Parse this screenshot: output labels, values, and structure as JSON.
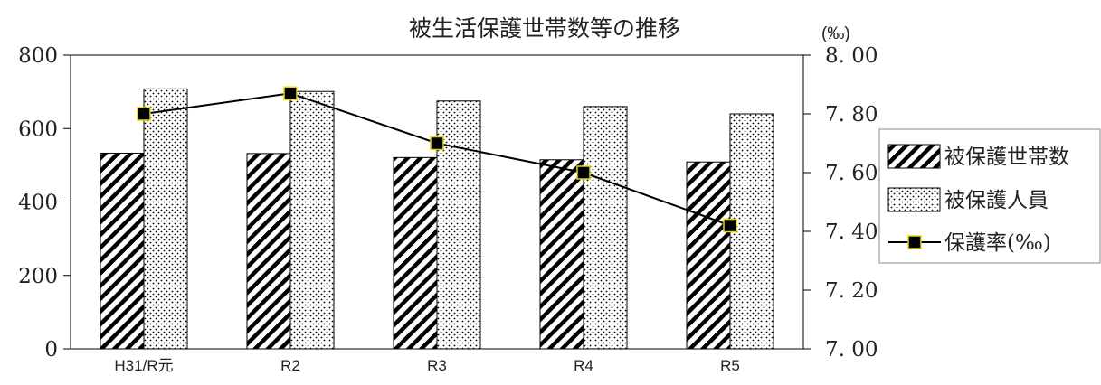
{
  "chart_data": {
    "type": "bar",
    "title": "被生活保護世帯数等の推移",
    "categories": [
      "H31/R元",
      "R2",
      "R3",
      "R4",
      "R5"
    ],
    "series": [
      {
        "name": "被保護世帯数",
        "type": "bar",
        "axis": "left",
        "pattern": "diagonal-hatch",
        "values": [
          533,
          532,
          521,
          515,
          509
        ]
      },
      {
        "name": "被保護人員",
        "type": "bar",
        "axis": "left",
        "pattern": "dots",
        "values": [
          708,
          701,
          675,
          660,
          640
        ]
      },
      {
        "name": "保護率(‰)",
        "type": "line",
        "axis": "right",
        "marker": "square",
        "values": [
          7.8,
          7.87,
          7.7,
          7.6,
          7.42
        ]
      }
    ],
    "y_left": {
      "min": 0,
      "max": 800,
      "ticks": [
        "0",
        "200",
        "400",
        "600",
        "800"
      ]
    },
    "y_right": {
      "min": 7.0,
      "max": 8.0,
      "unit": "(‰)",
      "ticks": [
        "7. 00",
        "7. 20",
        "7. 40",
        "7. 60",
        "7. 80",
        "8. 00"
      ]
    },
    "legend": {
      "placement": "right",
      "items": [
        "被保護世帯数",
        "被保護人員",
        "保護率(‰)"
      ]
    },
    "grid": false,
    "colors": {
      "bar_fill": "#ffffff",
      "bar_stroke": "#000000",
      "line": "#000000",
      "marker_fill": "#000000",
      "marker_border": "#e8d800"
    }
  }
}
